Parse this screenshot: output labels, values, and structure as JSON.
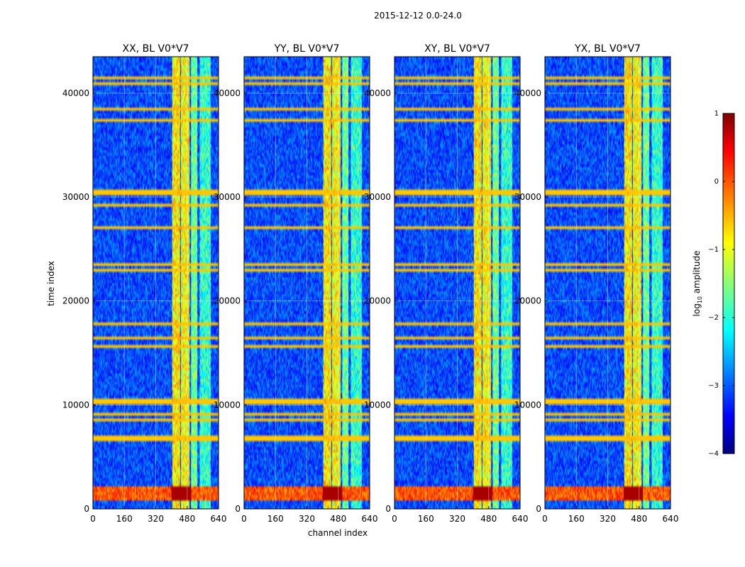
{
  "chart_data": {
    "type": "heatmap",
    "suptitle": "2015-12-12 0.0-24.0",
    "xlabel": "channel index",
    "ylabel": "time index",
    "xlim": [
      0,
      640
    ],
    "ylim": [
      0,
      43500
    ],
    "xticks": [
      0,
      160,
      320,
      480,
      640
    ],
    "yticks": [
      0,
      10000,
      20000,
      30000,
      40000
    ],
    "xtick_labels": [
      "0",
      "160",
      "320",
      "480",
      "640"
    ],
    "ytick_labels": [
      "0",
      "10000",
      "20000",
      "30000",
      "40000"
    ],
    "panels": [
      {
        "title": "XX, BL V0*V7",
        "pol": "XX"
      },
      {
        "title": "YY, BL V0*V7",
        "pol": "YY"
      },
      {
        "title": "XY, BL V0*V7",
        "pol": "XY"
      },
      {
        "title": "YX, BL V0*V7",
        "pol": "YX"
      }
    ],
    "colorbar": {
      "label": "log10 amplitude",
      "min": -4,
      "max": 1,
      "ticks": [
        1,
        0,
        -1,
        -2,
        -3,
        -4
      ],
      "tick_labels": [
        "1",
        "0",
        "−1",
        "−2",
        "−3",
        "−4"
      ],
      "colormap": "jet"
    },
    "features": {
      "background_level": -3.0,
      "bright_channel_bands": [
        {
          "from": 405,
          "to": 445,
          "level": -0.8
        },
        {
          "from": 450,
          "to": 490,
          "level": -0.9
        },
        {
          "from": 500,
          "to": 530,
          "level": -1.6
        },
        {
          "from": 545,
          "to": 600,
          "level": -1.9
        }
      ],
      "wide_time_band": {
        "from": 700,
        "to": 2200,
        "level": 0.3
      },
      "flagged_rows": [
        6800,
        8500,
        9200,
        10200,
        10500,
        15600,
        16400,
        17800,
        22900,
        23500,
        27000,
        29200,
        30300,
        30600,
        37500,
        38500,
        41000,
        41500
      ]
    }
  }
}
